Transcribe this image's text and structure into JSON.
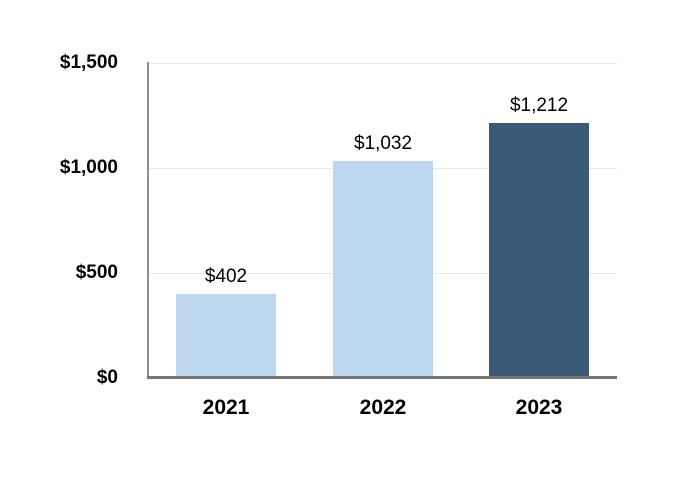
{
  "chart_data": {
    "type": "bar",
    "title": "",
    "xlabel": "",
    "ylabel": "",
    "categories": [
      "2021",
      "2022",
      "2023"
    ],
    "values": [
      402,
      1032,
      1212
    ],
    "bar_labels": [
      "$402",
      "$1,032",
      "$1,212"
    ],
    "bar_colors": [
      "#BDD7EE",
      "#BDD7EE",
      "#3A5A78"
    ],
    "yticks": [
      0,
      500,
      1000,
      1500
    ],
    "ytick_labels": [
      "$0",
      "$500",
      "$1,000",
      "$1,500"
    ],
    "ylim": [
      0,
      1500
    ],
    "grid": "horizontal-only",
    "legend": "none",
    "colors": {
      "background": "#FFFFFF",
      "gridline": "#E8E8E8",
      "y_axis_line": "#8F8F8F",
      "x_axis_line": "#757575",
      "text": "#000000",
      "light_bar": "#BDD7EE",
      "dark_bar": "#3A5A78"
    }
  }
}
